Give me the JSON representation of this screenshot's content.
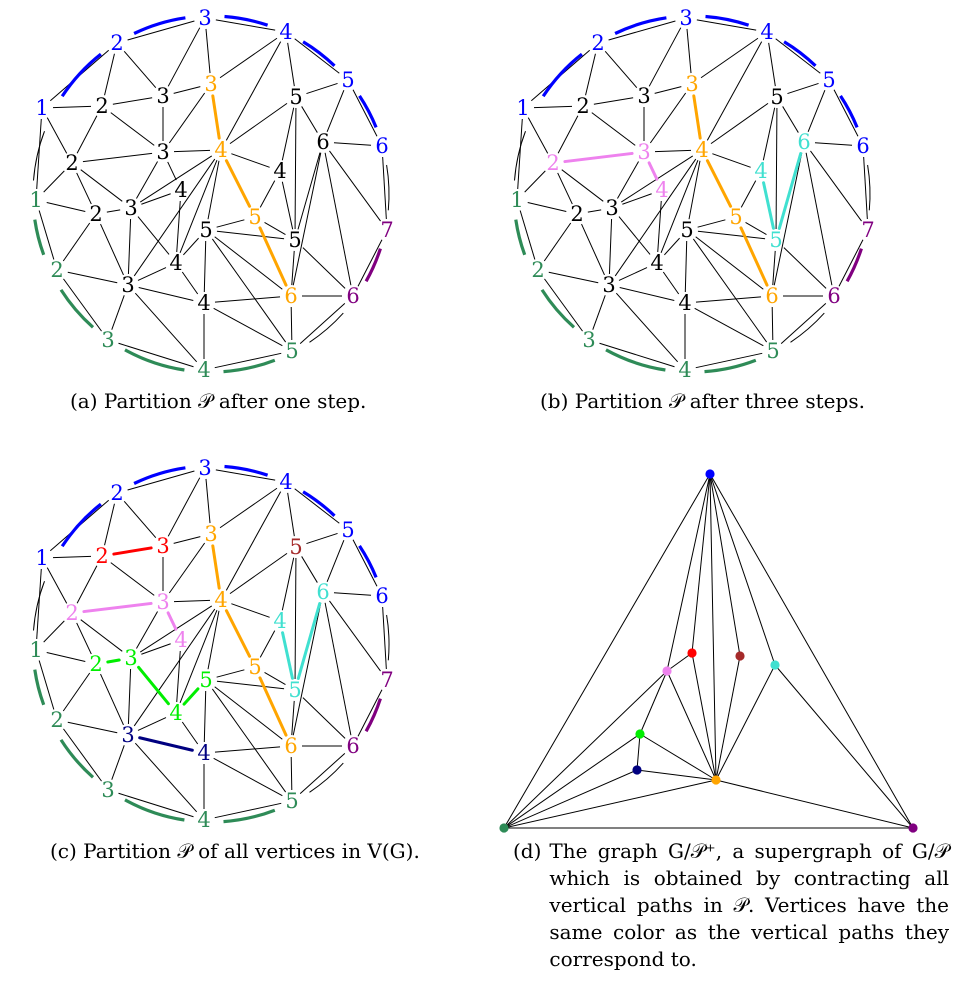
{
  "figure": {
    "captions": {
      "a": {
        "label": "(a)",
        "text": "Partition 𝒫 after one step."
      },
      "b": {
        "label": "(b)",
        "text": "Partition 𝒫 after three steps."
      },
      "c": {
        "label": "(c)",
        "text": "Partition 𝒫 of all vertices in V(G)."
      },
      "d": {
        "label": "(d)",
        "text": "The graph G/𝒫⁺, a supergraph of G/𝒫 which is obtained by contracting all vertical paths in 𝒫. Vertices have the same color as the vertical paths they correspond to."
      }
    }
  },
  "colors": {
    "black": "#000000",
    "blue": "#0000ff",
    "green": "#2e8b57",
    "purple": "#800080",
    "orange": "#ffa500",
    "violet": "#ee82ee",
    "cyan": "#40e0d0",
    "red": "#ff0000",
    "brown": "#a52a2a",
    "lime": "#00ee00",
    "navy": "#000080"
  },
  "graph": {
    "vertices": [
      {
        "id": "b1",
        "label": "1"
      },
      {
        "id": "b2",
        "label": "2"
      },
      {
        "id": "b3",
        "label": "3"
      },
      {
        "id": "b4",
        "label": "4"
      },
      {
        "id": "b5",
        "label": "5"
      },
      {
        "id": "b6",
        "label": "6"
      },
      {
        "id": "p7",
        "label": "7"
      },
      {
        "id": "p6",
        "label": "6"
      },
      {
        "id": "g5",
        "label": "5"
      },
      {
        "id": "g4",
        "label": "4"
      },
      {
        "id": "g3",
        "label": "3"
      },
      {
        "id": "g2",
        "label": "2"
      },
      {
        "id": "g1",
        "label": "1"
      },
      {
        "id": "i2a",
        "label": "2"
      },
      {
        "id": "i3a",
        "label": "3"
      },
      {
        "id": "o3",
        "label": "3"
      },
      {
        "id": "i5a",
        "label": "5"
      },
      {
        "id": "i6",
        "label": "6"
      },
      {
        "id": "i2b",
        "label": "2"
      },
      {
        "id": "i3b",
        "label": "3"
      },
      {
        "id": "o4",
        "label": "4"
      },
      {
        "id": "i4a",
        "label": "4"
      },
      {
        "id": "i4b",
        "label": "4"
      },
      {
        "id": "i2c",
        "label": "2"
      },
      {
        "id": "i3c",
        "label": "3"
      },
      {
        "id": "o5",
        "label": "5"
      },
      {
        "id": "i5b",
        "label": "5"
      },
      {
        "id": "i5c",
        "label": "5"
      },
      {
        "id": "i4c",
        "label": "4"
      },
      {
        "id": "i3d",
        "label": "3"
      },
      {
        "id": "o6",
        "label": "6"
      },
      {
        "id": "i4d",
        "label": "4"
      }
    ],
    "edges": [
      [
        "b1",
        "b2"
      ],
      [
        "b1",
        "i2a"
      ],
      [
        "b1",
        "i2b"
      ],
      [
        "b1",
        "g1"
      ],
      [
        "b2",
        "i2a"
      ],
      [
        "b2",
        "i3a"
      ],
      [
        "b2",
        "b3"
      ],
      [
        "b3",
        "i3a"
      ],
      [
        "b3",
        "o3"
      ],
      [
        "b3",
        "b4"
      ],
      [
        "b4",
        "o3"
      ],
      [
        "b4",
        "i5a"
      ],
      [
        "b4",
        "o4"
      ],
      [
        "b4",
        "b5"
      ],
      [
        "b5",
        "i5a"
      ],
      [
        "b5",
        "i6"
      ],
      [
        "b6",
        "b5"
      ],
      [
        "b6",
        "i6"
      ],
      [
        "b6",
        "p7"
      ],
      [
        "p7",
        "i6"
      ],
      [
        "p7",
        "p6"
      ],
      [
        "p6",
        "i6"
      ],
      [
        "p6",
        "i5c"
      ],
      [
        "p6",
        "o6"
      ],
      [
        "p6",
        "g5"
      ],
      [
        "g5",
        "o6"
      ],
      [
        "g5",
        "i4d"
      ],
      [
        "g5",
        "i5b"
      ],
      [
        "g5",
        "g4"
      ],
      [
        "g4",
        "i4d"
      ],
      [
        "g4",
        "i3d"
      ],
      [
        "g4",
        "g3"
      ],
      [
        "g3",
        "i3d"
      ],
      [
        "g3",
        "g2"
      ],
      [
        "g2",
        "i3d"
      ],
      [
        "g2",
        "i2c"
      ],
      [
        "g2",
        "g1"
      ],
      [
        "g1",
        "i2b"
      ],
      [
        "g1",
        "i2c"
      ],
      [
        "i2a",
        "i3a"
      ],
      [
        "i2a",
        "i2b"
      ],
      [
        "i2a",
        "i3b"
      ],
      [
        "i3a",
        "o3"
      ],
      [
        "i3a",
        "i3b"
      ],
      [
        "o3",
        "i3b"
      ],
      [
        "o3",
        "o4"
      ],
      [
        "i5a",
        "i6"
      ],
      [
        "i5a",
        "i4a"
      ],
      [
        "i5a",
        "i5c"
      ],
      [
        "i5a",
        "o4"
      ],
      [
        "i6",
        "i5c"
      ],
      [
        "i6",
        "o6"
      ],
      [
        "i2b",
        "i3b"
      ],
      [
        "i2b",
        "i2c"
      ],
      [
        "i2b",
        "i3c"
      ],
      [
        "i3b",
        "o4"
      ],
      [
        "i3b",
        "i4b"
      ],
      [
        "i3b",
        "i3c"
      ],
      [
        "o4",
        "i4a"
      ],
      [
        "o4",
        "o5"
      ],
      [
        "o4",
        "i5b"
      ],
      [
        "o4",
        "i4c"
      ],
      [
        "o4",
        "i3c"
      ],
      [
        "o4",
        "i3d"
      ],
      [
        "i4a",
        "o5"
      ],
      [
        "i4a",
        "i5c"
      ],
      [
        "i4b",
        "i3c"
      ],
      [
        "i4b",
        "i4c"
      ],
      [
        "i2c",
        "i3c"
      ],
      [
        "i2c",
        "i3d"
      ],
      [
        "i3c",
        "i4c"
      ],
      [
        "i3c",
        "i3d"
      ],
      [
        "o5",
        "i5c"
      ],
      [
        "o5",
        "o6"
      ],
      [
        "o5",
        "i5b"
      ],
      [
        "i5b",
        "i5c"
      ],
      [
        "i5b",
        "o6"
      ],
      [
        "i5b",
        "i4c"
      ],
      [
        "i5b",
        "i4d"
      ],
      [
        "i5c",
        "o6"
      ],
      [
        "i4c",
        "i3d"
      ],
      [
        "i4c",
        "i4d"
      ],
      [
        "i3d",
        "i4d"
      ],
      [
        "i4d",
        "o6"
      ]
    ],
    "boundary_arcs": [
      {
        "from": "b1",
        "to": "b2",
        "color": "blue"
      },
      {
        "from": "b2",
        "to": "b3",
        "color": "blue"
      },
      {
        "from": "b3",
        "to": "b4",
        "color": "blue"
      },
      {
        "from": "b4",
        "to": "b5",
        "color": "blue"
      },
      {
        "from": "b5",
        "to": "b6",
        "color": "blue"
      },
      {
        "from": "b6",
        "to": "p7",
        "color": "black"
      },
      {
        "from": "p7",
        "to": "p6",
        "color": "purple"
      },
      {
        "from": "p6",
        "to": "g5",
        "color": "black"
      },
      {
        "from": "g5",
        "to": "g4",
        "color": "green"
      },
      {
        "from": "g4",
        "to": "g3",
        "color": "green"
      },
      {
        "from": "g3",
        "to": "g2",
        "color": "green"
      },
      {
        "from": "g2",
        "to": "g1",
        "color": "green"
      },
      {
        "from": "g1",
        "to": "b1",
        "color": "black"
      }
    ],
    "panels": [
      {
        "id": "a",
        "paths": [
          {
            "vertices": [
              "o3",
              "o4",
              "o5",
              "o6"
            ],
            "color": "orange"
          }
        ],
        "vertex_colors": {
          "b1": "blue",
          "b2": "blue",
          "b3": "blue",
          "b4": "blue",
          "b5": "blue",
          "b6": "blue",
          "p7": "purple",
          "p6": "purple",
          "g5": "green",
          "g4": "green",
          "g3": "green",
          "g2": "green",
          "g1": "green",
          "o3": "orange",
          "o4": "orange",
          "o5": "orange",
          "o6": "orange"
        }
      },
      {
        "id": "b",
        "paths": [
          {
            "vertices": [
              "o3",
              "o4",
              "o5",
              "o6"
            ],
            "color": "orange"
          },
          {
            "vertices": [
              "i2b",
              "i3b",
              "i4b"
            ],
            "color": "violet"
          },
          {
            "vertices": [
              "i4a",
              "i5c",
              "i6"
            ],
            "color": "cyan"
          }
        ],
        "vertex_colors": {
          "b1": "blue",
          "b2": "blue",
          "b3": "blue",
          "b4": "blue",
          "b5": "blue",
          "b6": "blue",
          "p7": "purple",
          "p6": "purple",
          "g5": "green",
          "g4": "green",
          "g3": "green",
          "g2": "green",
          "g1": "green",
          "o3": "orange",
          "o4": "orange",
          "o5": "orange",
          "o6": "orange",
          "i2b": "violet",
          "i3b": "violet",
          "i4b": "violet",
          "i4a": "cyan",
          "i5c": "cyan",
          "i6": "cyan"
        }
      },
      {
        "id": "c",
        "paths": [
          {
            "vertices": [
              "o3",
              "o4",
              "o5",
              "o6"
            ],
            "color": "orange"
          },
          {
            "vertices": [
              "i2b",
              "i3b",
              "i4b"
            ],
            "color": "violet"
          },
          {
            "vertices": [
              "i4a",
              "i5c",
              "i6"
            ],
            "color": "cyan"
          },
          {
            "vertices": [
              "i2a",
              "i3a"
            ],
            "color": "red"
          },
          {
            "vertices": [
              "i2c",
              "i3c",
              "i4c",
              "i5b"
            ],
            "color": "lime"
          },
          {
            "vertices": [
              "i3d",
              "i4d"
            ],
            "color": "navy"
          }
        ],
        "vertex_colors": {
          "b1": "blue",
          "b2": "blue",
          "b3": "blue",
          "b4": "blue",
          "b5": "blue",
          "b6": "blue",
          "p7": "purple",
          "p6": "purple",
          "g5": "green",
          "g4": "green",
          "g3": "green",
          "g2": "green",
          "g1": "green",
          "o3": "orange",
          "o4": "orange",
          "o5": "orange",
          "o6": "orange",
          "i2b": "violet",
          "i3b": "violet",
          "i4b": "violet",
          "i4a": "cyan",
          "i5c": "cyan",
          "i6": "cyan",
          "i2a": "red",
          "i3a": "red",
          "i5a": "brown",
          "i2c": "lime",
          "i3c": "lime",
          "i4c": "lime",
          "i5b": "lime",
          "i3d": "navy",
          "i4d": "navy"
        }
      }
    ]
  },
  "contracted_graph": {
    "nodes": [
      {
        "id": "blue",
        "color": "blue"
      },
      {
        "id": "green",
        "color": "green"
      },
      {
        "id": "purple",
        "color": "purple"
      },
      {
        "id": "red",
        "color": "red"
      },
      {
        "id": "brown",
        "color": "brown"
      },
      {
        "id": "cyan",
        "color": "cyan"
      },
      {
        "id": "violet",
        "color": "violet"
      },
      {
        "id": "lime",
        "color": "lime"
      },
      {
        "id": "navy",
        "color": "navy"
      },
      {
        "id": "orange",
        "color": "orange"
      }
    ],
    "edges": [
      [
        "blue",
        "green"
      ],
      [
        "blue",
        "purple"
      ],
      [
        "green",
        "purple"
      ],
      [
        "blue",
        "red"
      ],
      [
        "blue",
        "brown"
      ],
      [
        "blue",
        "cyan"
      ],
      [
        "blue",
        "violet"
      ],
      [
        "blue",
        "orange"
      ],
      [
        "purple",
        "cyan"
      ],
      [
        "purple",
        "orange"
      ],
      [
        "green",
        "violet"
      ],
      [
        "green",
        "lime"
      ],
      [
        "green",
        "navy"
      ],
      [
        "green",
        "orange"
      ],
      [
        "red",
        "violet"
      ],
      [
        "red",
        "orange"
      ],
      [
        "brown",
        "orange"
      ],
      [
        "cyan",
        "orange"
      ],
      [
        "violet",
        "lime"
      ],
      [
        "violet",
        "orange"
      ],
      [
        "lime",
        "navy"
      ],
      [
        "lime",
        "orange"
      ],
      [
        "navy",
        "orange"
      ]
    ]
  }
}
